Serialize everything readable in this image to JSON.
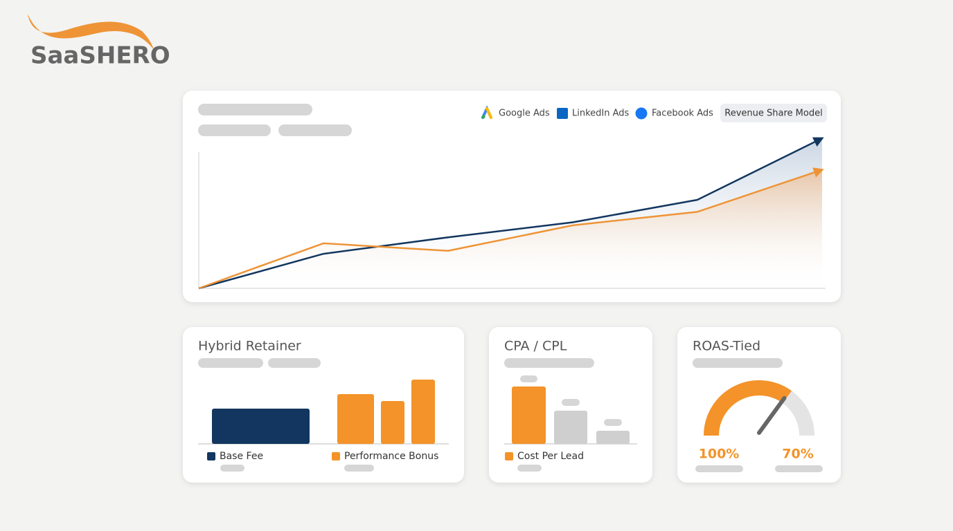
{
  "brand": {
    "name": "SaaSHERO"
  },
  "chart_data": [
    {
      "type": "line",
      "channels": [
        "Google Ads",
        "LinkedIn Ads",
        "Facebook Ads"
      ],
      "badge": "Revenue Share Model",
      "categories": [
        null,
        null,
        null,
        null,
        null,
        null
      ],
      "ylim": [
        0,
        100
      ],
      "series": [
        {
          "color": "#12365f",
          "values": [
            0,
            23,
            34,
            44,
            59,
            100
          ]
        },
        {
          "color": "#ee9436",
          "values": [
            0,
            30,
            25,
            42,
            51,
            79
          ]
        }
      ]
    },
    {
      "type": "bar",
      "title": "Hybrid Retainer",
      "ylim": [
        0,
        100
      ],
      "series": [
        {
          "name": "Base Fee",
          "color": "#12365f",
          "values": [
            51
          ]
        },
        {
          "name": "Performance Bonus",
          "color": "#f39329",
          "values": [
            72,
            62,
            93
          ]
        }
      ]
    },
    {
      "type": "bar",
      "title": "CPA / CPL",
      "ylim": [
        0,
        100
      ],
      "series": [
        {
          "name": "Cost Per Lead",
          "color": "#f39329",
          "values": [
            83
          ]
        },
        {
          "color": "#cfcfcf",
          "values": [
            48,
            19
          ]
        }
      ]
    },
    {
      "type": "gauge",
      "title": "ROAS-Tied",
      "values": [
        100,
        70
      ],
      "value_labels": [
        "100%",
        "70%"
      ],
      "color": "#f39329",
      "track_color": "#e4e4e4"
    }
  ]
}
